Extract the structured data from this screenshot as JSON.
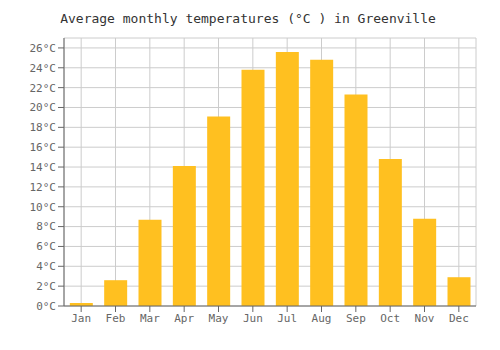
{
  "chart_data": {
    "type": "bar",
    "title": "Average monthly temperatures (°C ) in Greenville",
    "categories": [
      "Jan",
      "Feb",
      "Mar",
      "Apr",
      "May",
      "Jun",
      "Jul",
      "Aug",
      "Sep",
      "Oct",
      "Nov",
      "Dec"
    ],
    "values": [
      0.3,
      2.6,
      8.7,
      14.1,
      19.1,
      23.8,
      25.6,
      24.8,
      21.3,
      14.8,
      8.8,
      2.9
    ],
    "color": "#FFC020",
    "ylim": [
      0,
      27
    ],
    "yticks": [
      {
        "value": 0,
        "label": "0°C"
      },
      {
        "value": 2,
        "label": "2°C"
      },
      {
        "value": 4,
        "label": "4°C"
      },
      {
        "value": 6,
        "label": "6°C"
      },
      {
        "value": 8,
        "label": "8°C"
      },
      {
        "value": 10,
        "label": "10°C"
      },
      {
        "value": 12,
        "label": "12°C"
      },
      {
        "value": 14,
        "label": "14°C"
      },
      {
        "value": 16,
        "label": "16°C"
      },
      {
        "value": 18,
        "label": "18°C"
      },
      {
        "value": 20,
        "label": "20°C"
      },
      {
        "value": 22,
        "label": "22°C"
      },
      {
        "value": 24,
        "label": "24°C"
      },
      {
        "value": 26,
        "label": "26°C"
      }
    ],
    "grid": true
  }
}
